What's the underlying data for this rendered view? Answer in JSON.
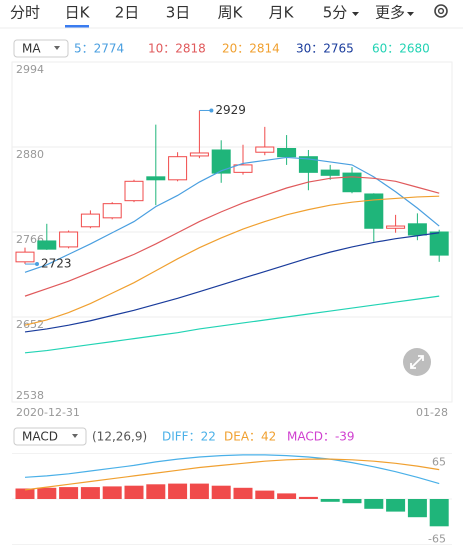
{
  "tabs": [
    {
      "label": "分时"
    },
    {
      "label": "日K",
      "selected": true
    },
    {
      "label": "2日"
    },
    {
      "label": "3日"
    },
    {
      "label": "周K"
    },
    {
      "label": "月K"
    },
    {
      "label": "5分",
      "dropdown": true
    },
    {
      "label": "更多",
      "dropdown": true
    }
  ],
  "chart_data": [
    {
      "type": "candlestick",
      "indicator": "MA",
      "categories": [
        "2020-12-31",
        null,
        null,
        null,
        null,
        null,
        null,
        null,
        null,
        null,
        null,
        null,
        null,
        null,
        null,
        null,
        null,
        null,
        null,
        "01-28"
      ],
      "candles": [
        {
          "open": 2726,
          "close": 2739,
          "high": 2745,
          "low": 2723
        },
        {
          "open": 2754,
          "close": 2743,
          "high": 2777,
          "low": 2742
        },
        {
          "open": 2746,
          "close": 2766,
          "high": 2768,
          "low": 2744
        },
        {
          "open": 2773,
          "close": 2790,
          "high": 2795,
          "low": 2771
        },
        {
          "open": 2785,
          "close": 2804,
          "high": 2806,
          "low": 2783
        },
        {
          "open": 2808,
          "close": 2834,
          "high": 2836,
          "low": 2806
        },
        {
          "open": 2840,
          "close": 2836,
          "high": 2910,
          "low": 2802
        },
        {
          "open": 2836,
          "close": 2867,
          "high": 2873,
          "low": 2834
        },
        {
          "open": 2868,
          "close": 2872,
          "high": 2929,
          "low": 2865
        },
        {
          "open": 2876,
          "close": 2845,
          "high": 2889,
          "low": 2832
        },
        {
          "open": 2846,
          "close": 2856,
          "high": 2883,
          "low": 2843
        },
        {
          "open": 2873,
          "close": 2880,
          "high": 2907,
          "low": 2869
        },
        {
          "open": 2878,
          "close": 2867,
          "high": 2896,
          "low": 2856
        },
        {
          "open": 2867,
          "close": 2846,
          "high": 2876,
          "low": 2822
        },
        {
          "open": 2849,
          "close": 2842,
          "high": 2856,
          "low": 2836
        },
        {
          "open": 2845,
          "close": 2820,
          "high": 2853,
          "low": 2818
        },
        {
          "open": 2817,
          "close": 2771,
          "high": 2818,
          "low": 2753
        },
        {
          "open": 2771,
          "close": 2774,
          "high": 2789,
          "low": 2765
        },
        {
          "open": 2777,
          "close": 2762,
          "high": 2791,
          "low": 2755
        },
        {
          "open": 2766,
          "close": 2735,
          "high": 2769,
          "low": 2726
        }
      ],
      "up_color": "#f04a4a",
      "down_color": "#1fb57a",
      "ylim": [
        2538,
        2994
      ],
      "yticks": [
        2994,
        2880,
        2766,
        2652,
        2538
      ],
      "grid": true,
      "series": [
        {
          "name": "5：2774",
          "color": "#4a9fe0",
          "values": [
            2712,
            2722,
            2736,
            2750,
            2765,
            2780,
            2800,
            2815,
            2833,
            2848,
            2858,
            2862,
            2866,
            2864,
            2860,
            2856,
            2840,
            2820,
            2798,
            2774
          ]
        },
        {
          "name": "10：2818",
          "color": "#e05a5c",
          "values": [
            2680,
            2690,
            2700,
            2712,
            2724,
            2736,
            2750,
            2765,
            2780,
            2793,
            2805,
            2815,
            2825,
            2833,
            2838,
            2840,
            2838,
            2834,
            2826,
            2818
          ]
        },
        {
          "name": "20：2814",
          "color": "#f0a030",
          "values": [
            2641,
            2648,
            2658,
            2670,
            2684,
            2698,
            2714,
            2730,
            2745,
            2758,
            2770,
            2780,
            2789,
            2796,
            2802,
            2806,
            2809,
            2811,
            2813,
            2814
          ]
        },
        {
          "name": "30：2765",
          "color": "#1a3c9c",
          "values": [
            2632,
            2636,
            2641,
            2647,
            2654,
            2661,
            2669,
            2677,
            2686,
            2695,
            2704,
            2713,
            2722,
            2731,
            2739,
            2746,
            2752,
            2757,
            2761,
            2765
          ]
        },
        {
          "name": "60：2680",
          "color": "#22d3b4",
          "values": [
            2604,
            2607,
            2611,
            2615,
            2619,
            2623,
            2627,
            2631,
            2636,
            2640,
            2644,
            2648,
            2652,
            2656,
            2660,
            2664,
            2668,
            2672,
            2676,
            2680
          ]
        }
      ]
    },
    {
      "type": "macd",
      "indicator": "MACD",
      "params": "(12,26,9)",
      "ylim": [
        -70,
        70
      ],
      "yticks": [
        65,
        0,
        -65
      ],
      "series": [
        {
          "name": "DIFF：22",
          "color": "#4ab0e8",
          "values": [
            31,
            33,
            36,
            40,
            44,
            48,
            53,
            57,
            60,
            62,
            63,
            63,
            62,
            60,
            57,
            52,
            46,
            39,
            31,
            22
          ]
        },
        {
          "name": "DEA：42",
          "color": "#f0a030",
          "values": [
            13,
            17,
            21,
            25,
            29,
            33,
            37,
            41,
            45,
            48,
            51,
            54,
            56,
            57,
            57,
            56,
            54,
            51,
            47,
            42
          ]
        }
      ],
      "histogram": {
        "name": "MACD：-39",
        "color": "#d040d0",
        "up_color": "#f04a4a",
        "down_color": "#1fb57a",
        "values": [
          15,
          16,
          17,
          17,
          18,
          19,
          21,
          22,
          22,
          19,
          16,
          12,
          8,
          3,
          -4,
          -6,
          -14,
          -18,
          -26,
          -39
        ]
      }
    }
  ]
}
